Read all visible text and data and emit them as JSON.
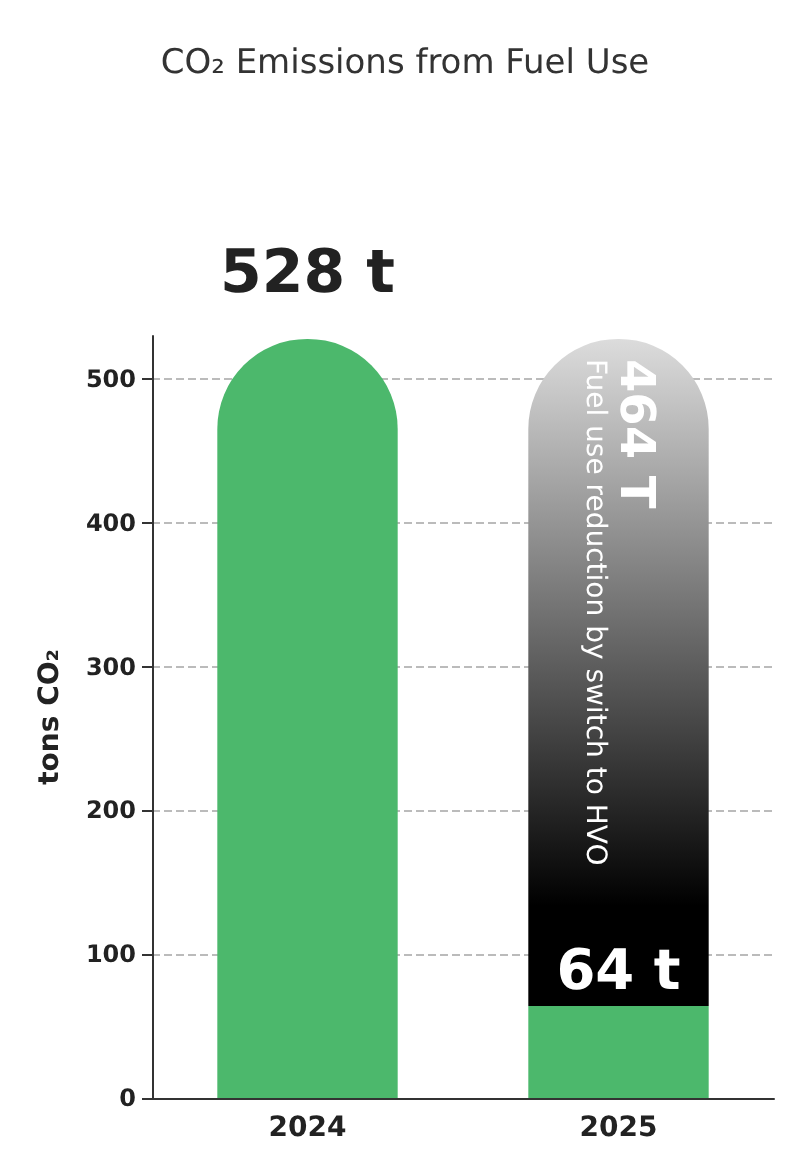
{
  "chart_data": {
    "type": "bar",
    "title": "CO₂ Emissions from Fuel Use",
    "ylabel": "tons CO₂",
    "categories": [
      "2024",
      "2025"
    ],
    "stacked": true,
    "series": [
      {
        "color": "#4cb86c",
        "values": [
          528,
          64
        ],
        "value_labels": [
          "528 t",
          "64 t"
        ]
      },
      {
        "color": "#000000",
        "values": [
          null,
          464
        ],
        "value_labels": [
          null,
          "464 T"
        ]
      }
    ],
    "annotations": [
      "Fuel use reduction by switch to HVO"
    ],
    "ylim": [
      0,
      530
    ],
    "yticks": [
      0,
      100,
      200,
      300,
      400,
      500
    ],
    "grid": "y"
  }
}
